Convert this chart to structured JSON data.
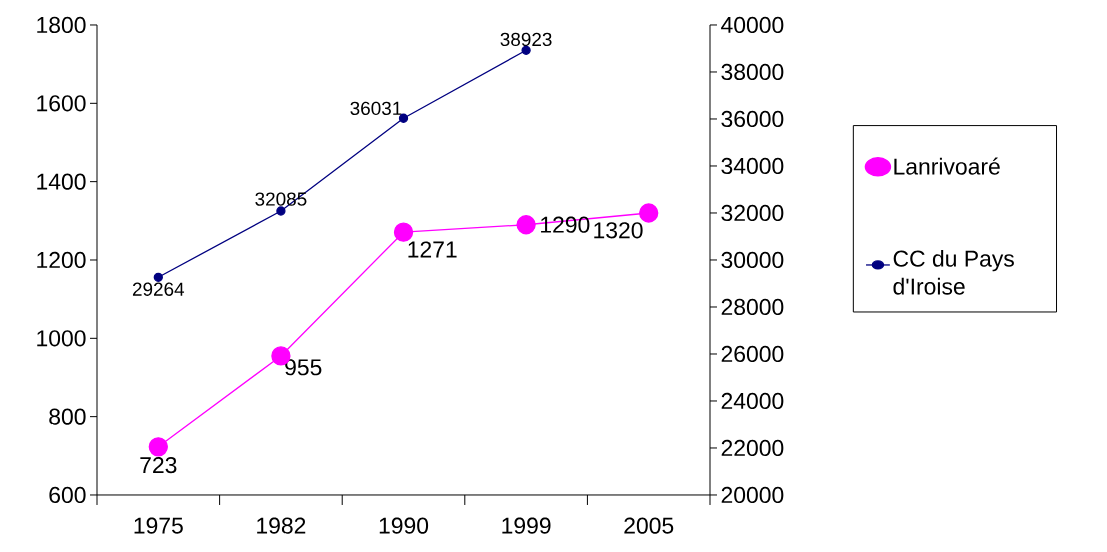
{
  "chart_data": {
    "type": "line",
    "categories": [
      "1975",
      "1982",
      "1990",
      "1999",
      "2005"
    ],
    "series": [
      {
        "name": "Lanrivoaré",
        "color": "#ff00ff",
        "values": [
          723,
          955,
          1271,
          1290,
          1320
        ]
      },
      {
        "name": "CC du Pays d'Iroise",
        "color": "#000080",
        "axis": "y2",
        "values": [
          29264,
          32085,
          36031,
          38923,
          null
        ]
      }
    ],
    "ylim": [
      600,
      1800
    ],
    "yticks": [
      600,
      800,
      1000,
      1200,
      1400,
      1600,
      1800
    ],
    "y2lim": [
      20000,
      40000
    ],
    "y2ticks": [
      20000,
      22000,
      24000,
      26000,
      28000,
      30000,
      32000,
      34000,
      36000,
      38000,
      40000
    ],
    "data_labels": true,
    "marker": "circle",
    "line_style": "solid",
    "grid": false,
    "legend": "right"
  }
}
